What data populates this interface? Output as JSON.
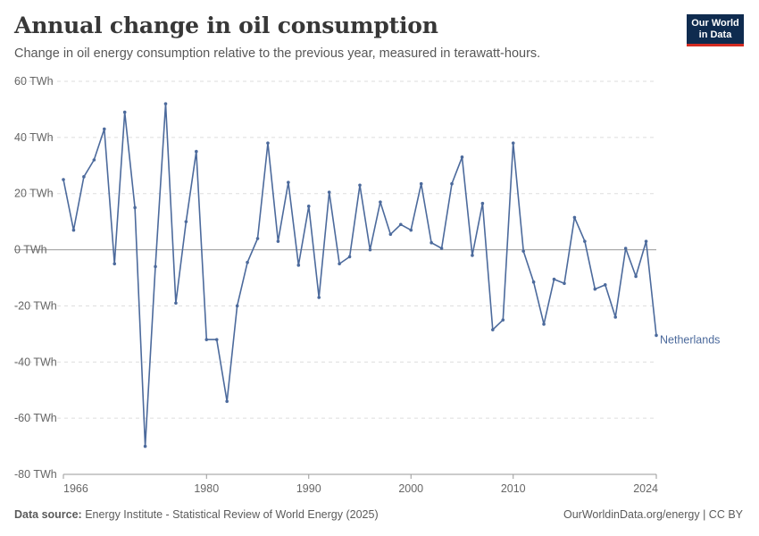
{
  "header": {
    "title": "Annual change in oil consumption",
    "subtitle": "Change in oil energy consumption relative to the previous year, measured in terawatt-hours."
  },
  "logo": {
    "line1": "Our World",
    "line2": "in Data"
  },
  "footer": {
    "source_label": "Data source:",
    "source_text": "Energy Institute - Statistical Review of World Energy (2025)",
    "credit": "OurWorldinData.org/energy | CC BY"
  },
  "colors": {
    "series": "#4c6a9c",
    "grid": "#dddddd",
    "zero": "#999999"
  },
  "chart_data": {
    "type": "line",
    "title": "Annual change in oil consumption",
    "ylim": [
      -80,
      60
    ],
    "xlim": [
      1966,
      2024
    ],
    "y_ticks": [
      {
        "value": 60,
        "label": "60 TWh"
      },
      {
        "value": 40,
        "label": "40 TWh"
      },
      {
        "value": 20,
        "label": "20 TWh"
      },
      {
        "value": 0,
        "label": "0 TWh"
      },
      {
        "value": -20,
        "label": "-20 TWh"
      },
      {
        "value": -40,
        "label": "-40 TWh"
      },
      {
        "value": -60,
        "label": "-60 TWh"
      },
      {
        "value": -80,
        "label": "-80 TWh"
      }
    ],
    "x_ticks": [
      {
        "value": 1966,
        "label": "1966"
      },
      {
        "value": 1980,
        "label": "1980"
      },
      {
        "value": 1990,
        "label": "1990"
      },
      {
        "value": 2000,
        "label": "2000"
      },
      {
        "value": 2010,
        "label": "2010"
      },
      {
        "value": 2024,
        "label": "2024"
      }
    ],
    "grid": "horizontal dashed",
    "series": [
      {
        "name": "Netherlands",
        "x": [
          1966,
          1967,
          1968,
          1969,
          1970,
          1971,
          1972,
          1973,
          1974,
          1975,
          1976,
          1977,
          1978,
          1979,
          1980,
          1981,
          1982,
          1983,
          1984,
          1985,
          1986,
          1987,
          1988,
          1989,
          1990,
          1991,
          1992,
          1993,
          1994,
          1995,
          1996,
          1997,
          1998,
          1999,
          2000,
          2001,
          2002,
          2003,
          2004,
          2005,
          2006,
          2007,
          2008,
          2009,
          2010,
          2011,
          2012,
          2013,
          2014,
          2015,
          2016,
          2017,
          2018,
          2019,
          2020,
          2021,
          2022,
          2023,
          2024
        ],
        "y": [
          25,
          7,
          26,
          32,
          43,
          -5,
          49,
          15,
          -70,
          -6,
          52,
          -19,
          10,
          35,
          -32,
          -32,
          -54,
          -20,
          -4.5,
          4,
          38,
          3,
          24,
          -5.5,
          15.5,
          -17,
          20.5,
          -5,
          -2.5,
          23,
          0,
          17,
          5.5,
          9,
          7,
          23.5,
          2.5,
          0.5,
          23.5,
          33,
          -2,
          16.5,
          -28.5,
          -25,
          38,
          -0.5,
          -11.5,
          -26.5,
          -10.5,
          -12,
          11.5,
          3,
          -14,
          -12.5,
          -24,
          0.5,
          -9.5,
          3,
          -30.5
        ]
      }
    ]
  }
}
